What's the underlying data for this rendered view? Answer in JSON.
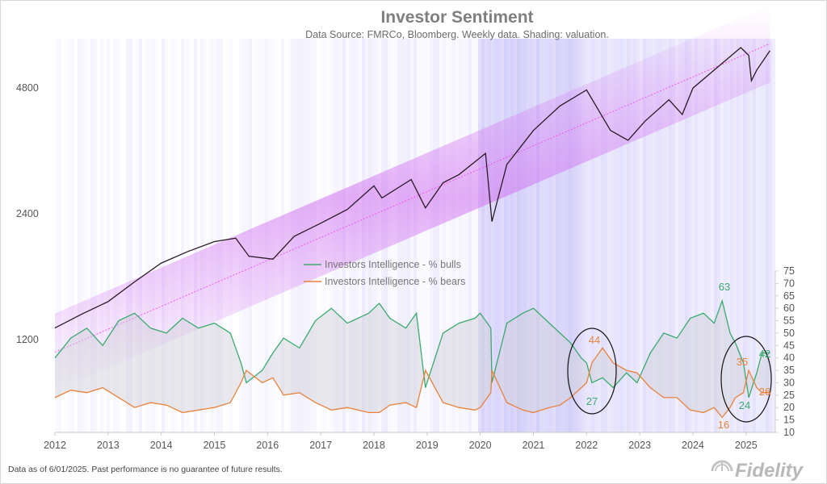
{
  "chart_data": {
    "type": "line",
    "title": "Investor Sentiment",
    "subtitle": "Data Source: FMRCo, Bloomberg.  Weekly data.  Shading: valuation.",
    "x_ticks": [
      "2012",
      "2013",
      "2014",
      "2015",
      "2016",
      "2017",
      "2018",
      "2019",
      "2020",
      "2021",
      "2022",
      "2023",
      "2024",
      "2025"
    ],
    "left_axis": {
      "scale": "log",
      "ticks": [
        "1200",
        "2400",
        "4800"
      ],
      "tick_values": [
        1200,
        2400,
        4800
      ],
      "range": [
        720,
        6300
      ]
    },
    "right_axis": {
      "ticks": [
        "10",
        "15",
        "20",
        "25",
        "30",
        "35",
        "40",
        "45",
        "50",
        "55",
        "60",
        "65",
        "70",
        "75"
      ],
      "range": [
        10,
        75
      ]
    },
    "index_series": {
      "x": [
        2012.0,
        2012.5,
        2013.0,
        2013.5,
        2014.0,
        2014.5,
        2015.0,
        2015.4,
        2015.65,
        2016.1,
        2016.5,
        2017.0,
        2017.5,
        2018.0,
        2018.15,
        2018.7,
        2018.97,
        2019.3,
        2019.6,
        2020.1,
        2020.22,
        2020.5,
        2021.0,
        2021.5,
        2022.0,
        2022.45,
        2022.78,
        2023.1,
        2023.55,
        2023.8,
        2024.0,
        2024.4,
        2024.9,
        2025.05,
        2025.1,
        2025.2,
        2025.45
      ],
      "y": [
        1280,
        1380,
        1480,
        1650,
        1830,
        1950,
        2060,
        2100,
        1900,
        1870,
        2120,
        2280,
        2460,
        2800,
        2620,
        2900,
        2480,
        2850,
        2980,
        3350,
        2300,
        3150,
        3800,
        4350,
        4750,
        3800,
        3600,
        4000,
        4500,
        4150,
        4800,
        5300,
        6000,
        5750,
        5000,
        5300,
        5900
      ]
    },
    "trend_line": {
      "x": [
        2012.0,
        2025.45
      ],
      "y": [
        1120,
        6130
      ]
    },
    "series": [
      {
        "name": "Investors Intelligence - % bulls",
        "color": "#3aaa6e",
        "x": [
          2012.0,
          2012.3,
          2012.6,
          2012.9,
          2013.2,
          2013.5,
          2013.8,
          2014.1,
          2014.4,
          2014.7,
          2015.0,
          2015.3,
          2015.5,
          2015.6,
          2015.9,
          2016.1,
          2016.3,
          2016.6,
          2016.9,
          2017.2,
          2017.5,
          2017.9,
          2018.1,
          2018.3,
          2018.6,
          2018.8,
          2018.97,
          2019.3,
          2019.6,
          2019.9,
          2020.0,
          2020.2,
          2020.22,
          2020.5,
          2020.8,
          2021.0,
          2021.3,
          2021.5,
          2021.7,
          2021.9,
          2022.0,
          2022.1,
          2022.3,
          2022.5,
          2022.75,
          2022.95,
          2023.2,
          2023.45,
          2023.7,
          2023.95,
          2024.2,
          2024.4,
          2024.55,
          2024.7,
          2024.8,
          2024.95,
          2025.05,
          2025.2,
          2025.3,
          2025.45
        ],
        "y": [
          40,
          48,
          52,
          45,
          55,
          58,
          52,
          50,
          56,
          52,
          54,
          50,
          38,
          30,
          35,
          42,
          48,
          44,
          55,
          60,
          54,
          58,
          62,
          56,
          52,
          58,
          28,
          50,
          54,
          56,
          58,
          52,
          30,
          54,
          58,
          60,
          54,
          50,
          46,
          40,
          38,
          30,
          32,
          28,
          34,
          30,
          42,
          50,
          48,
          56,
          58,
          54,
          63,
          50,
          46,
          38,
          24,
          34,
          42,
          42
        ]
      },
      {
        "name": "Investors Intelligence - % bears",
        "color": "#e8823b",
        "x": [
          2012.0,
          2012.3,
          2012.6,
          2012.9,
          2013.2,
          2013.5,
          2013.8,
          2014.1,
          2014.4,
          2014.7,
          2015.0,
          2015.3,
          2015.5,
          2015.6,
          2015.9,
          2016.1,
          2016.3,
          2016.6,
          2016.9,
          2017.2,
          2017.5,
          2017.9,
          2018.1,
          2018.3,
          2018.6,
          2018.8,
          2018.97,
          2019.3,
          2019.6,
          2019.9,
          2020.0,
          2020.2,
          2020.22,
          2020.5,
          2020.8,
          2021.0,
          2021.3,
          2021.5,
          2021.7,
          2021.9,
          2022.0,
          2022.1,
          2022.3,
          2022.5,
          2022.75,
          2022.95,
          2023.2,
          2023.45,
          2023.7,
          2023.95,
          2024.2,
          2024.4,
          2024.55,
          2024.7,
          2024.8,
          2024.95,
          2025.05,
          2025.2,
          2025.3,
          2025.45
        ],
        "y": [
          24,
          27,
          26,
          28,
          24,
          20,
          22,
          21,
          18,
          19,
          20,
          22,
          30,
          35,
          30,
          32,
          25,
          26,
          22,
          19,
          20,
          18,
          18,
          21,
          22,
          20,
          35,
          22,
          20,
          19,
          20,
          26,
          35,
          22,
          19,
          18,
          20,
          21,
          24,
          28,
          30,
          38,
          44,
          38,
          35,
          34,
          28,
          24,
          24,
          19,
          18,
          20,
          16,
          20,
          24,
          26,
          35,
          28,
          26,
          26
        ]
      }
    ],
    "annotations": [
      {
        "text": "63",
        "color": "#3aaa6e"
      },
      {
        "text": "44",
        "color": "#e8823b"
      },
      {
        "text": "27",
        "color": "#3aaa6e"
      },
      {
        "text": "35",
        "color": "#e8823b"
      },
      {
        "text": "42",
        "color": "#3aaa6e"
      },
      {
        "text": "24",
        "color": "#3aaa6e"
      },
      {
        "text": "26",
        "color": "#e8823b"
      },
      {
        "text": "16",
        "color": "#e8823b"
      }
    ],
    "legend_position": "center",
    "grid": false
  },
  "footnote": "Data as of 6/01/2025. Past performance is no guarantee of future results.",
  "logo_text": "Fidelity",
  "colors": {
    "index": "#2a1a24",
    "trend": "#ee55ee",
    "band": "#d070f0",
    "shading": "#8a7cf0"
  }
}
